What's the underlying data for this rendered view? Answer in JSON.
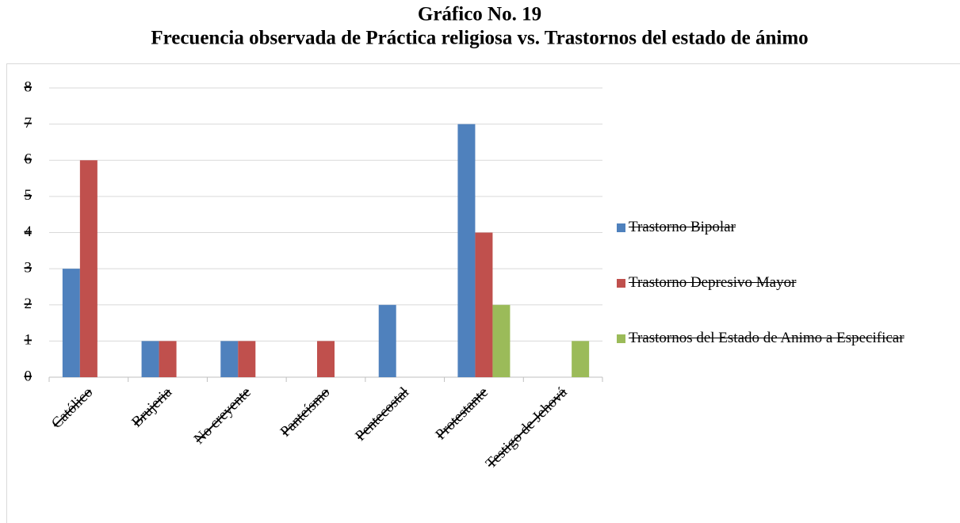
{
  "chart_data": {
    "type": "bar",
    "title": "Gráfico No. 19",
    "subtitle": "Frecuencia observada de Práctica religiosa vs. Trastornos del estado de ánimo",
    "categories": [
      "Católico",
      "Brujeria",
      "No creyente",
      "Panteísmo",
      "Pentecostal",
      "Protestante",
      "Testigo de Jehová"
    ],
    "series": [
      {
        "name": "Trastorno Bipolar",
        "color": "#4f81bd",
        "values": [
          3,
          1,
          1,
          0,
          2,
          7,
          0
        ]
      },
      {
        "name": "Trastorno Depresivo Mayor",
        "color": "#c0504d",
        "values": [
          6,
          1,
          1,
          1,
          0,
          4,
          0
        ]
      },
      {
        "name": "Trastornos del Estado de Animo a Especificar",
        "color": "#9bbb59",
        "values": [
          0,
          0,
          0,
          0,
          0,
          2,
          1
        ]
      }
    ],
    "ylim": [
      0,
      8
    ],
    "yticks": [
      0,
      1,
      2,
      3,
      4,
      5,
      6,
      7,
      8
    ],
    "grid": true,
    "legend": "right"
  }
}
